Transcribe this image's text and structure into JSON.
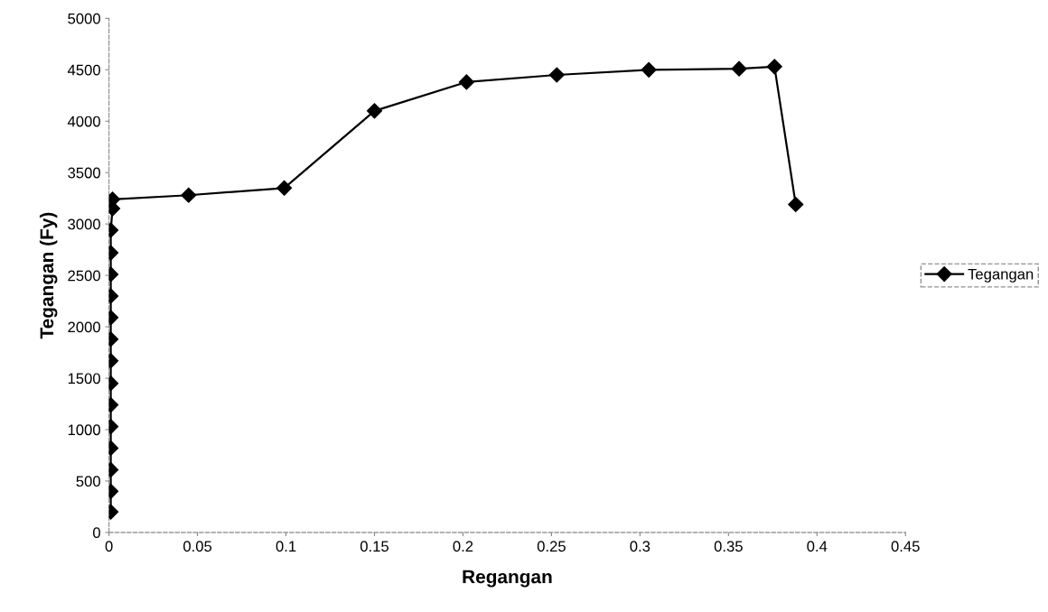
{
  "chart_data": {
    "type": "line",
    "xlabel": "Regangan",
    "ylabel": "Tegangan (Fy)",
    "xlim": [
      0,
      0.45
    ],
    "xticks": [
      0,
      0.05,
      0.1,
      0.15,
      0.2,
      0.25,
      0.3,
      0.35,
      0.4,
      0.45
    ],
    "ylim": [
      0,
      5000
    ],
    "yticks": [
      0,
      500,
      1000,
      1500,
      2000,
      2500,
      3000,
      3500,
      4000,
      4500,
      5000
    ],
    "grid": false,
    "legend": "right",
    "marker": "diamond",
    "line_style": "solid",
    "series": [
      {
        "name": "Tegangan",
        "color": "#000000",
        "x": [
          0.001,
          0.001,
          0.001,
          0.001,
          0.001,
          0.001,
          0.001,
          0.001,
          0.001,
          0.001,
          0.001,
          0.001,
          0.001,
          0.001,
          0.002,
          0.002,
          0.045,
          0.099,
          0.15,
          0.202,
          0.253,
          0.305,
          0.356,
          0.376,
          0.388
        ],
        "values": [
          200,
          400,
          610,
          820,
          1030,
          1240,
          1450,
          1670,
          1880,
          2090,
          2300,
          2510,
          2720,
          2940,
          3150,
          3240,
          3280,
          3350,
          4100,
          4380,
          4450,
          4500,
          4510,
          4530,
          3190
        ]
      }
    ]
  }
}
